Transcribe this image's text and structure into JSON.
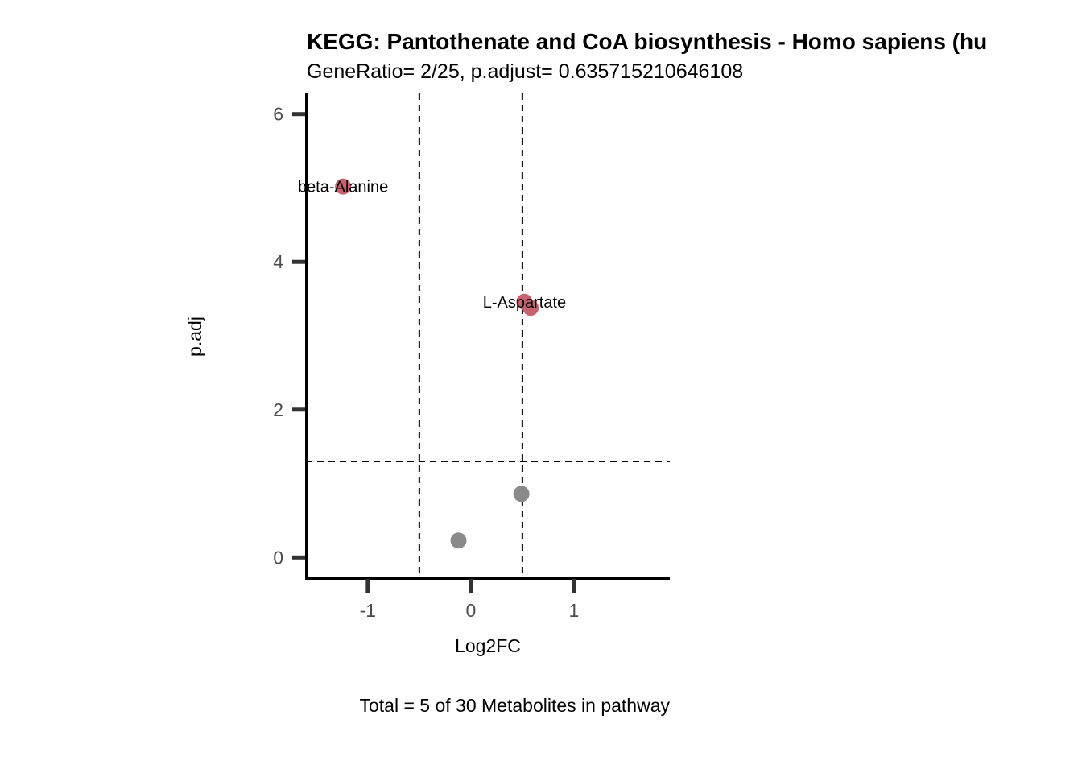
{
  "chart_data": {
    "type": "scatter",
    "title": "KEGG: Pantothenate and CoA biosynthesis - Homo sapiens (hu",
    "subtitle": "GeneRatio= 2/25, p.adjust= 0.635715210646108",
    "xlabel": "Log2FC",
    "ylabel": "p.adj",
    "caption": "Total = 5 of 30 Metabolites in pathway",
    "xlim": [
      -1.6,
      1.93
    ],
    "ylim": [
      -0.28,
      6.28
    ],
    "x_ticks": [
      -1,
      0,
      1
    ],
    "y_ticks": [
      0,
      2,
      4,
      6
    ],
    "x_tick_labels": [
      "-1",
      "0",
      "1"
    ],
    "y_tick_labels": [
      "0",
      "2",
      "4",
      "6"
    ],
    "vlines": [
      -0.5,
      0.5
    ],
    "hline": 1.3,
    "grid": false,
    "colors": {
      "significant": "#c8626e",
      "not_significant": "#8a8a8a",
      "axis": "#000000",
      "tick": "#333333"
    },
    "points": [
      {
        "x": -1.24,
        "y": 5.02,
        "group": "significant"
      },
      {
        "x": 0.52,
        "y": 3.46,
        "group": "significant"
      },
      {
        "x": 0.58,
        "y": 3.38,
        "group": "significant"
      },
      {
        "x": 0.49,
        "y": 0.86,
        "group": "not_significant"
      },
      {
        "x": -0.12,
        "y": 0.23,
        "group": "not_significant"
      }
    ],
    "labels": [
      {
        "text": "beta-Alanine",
        "x": -1.24,
        "y": 5.02
      },
      {
        "text": "L-Aspartate",
        "x": 0.52,
        "y": 3.46
      }
    ]
  }
}
